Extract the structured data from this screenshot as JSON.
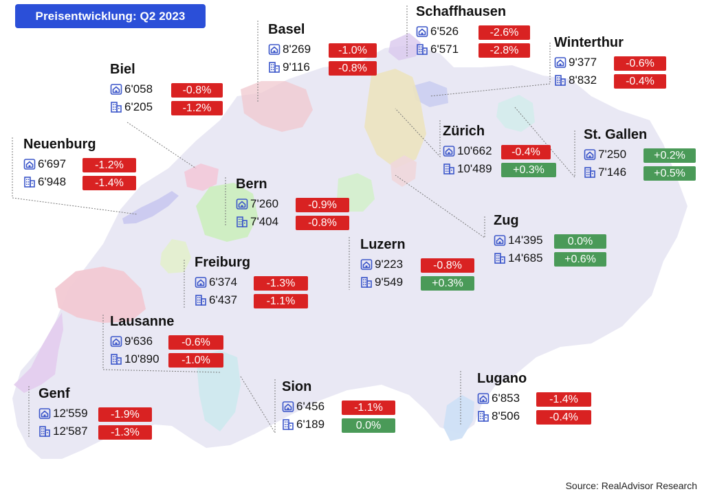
{
  "title": "Preisentwicklung: Q2 2023",
  "source": "Source: RealAdvisor Research",
  "legend_icons": {
    "house": "house-icon",
    "apartment": "apartment-building-icon"
  },
  "colors": {
    "title_bg": "#2b4fd8",
    "negative": "#d92222",
    "positive": "#4a9a58",
    "country_fill": "#e9e8f4",
    "icon": "#3a55c9"
  },
  "cities": [
    {
      "name": "Basel",
      "house_price": "8'269",
      "house_change": "-1.0%",
      "apartment_price": "9'116",
      "apartment_change": "-0.8%"
    },
    {
      "name": "Schaffhausen",
      "house_price": "6'526",
      "house_change": "-2.6%",
      "apartment_price": "6'571",
      "apartment_change": "-2.8%"
    },
    {
      "name": "Winterthur",
      "house_price": "9'377",
      "house_change": "-0.6%",
      "apartment_price": "8'832",
      "apartment_change": "-0.4%"
    },
    {
      "name": "Biel",
      "house_price": "6'058",
      "house_change": "-0.8%",
      "apartment_price": "6'205",
      "apartment_change": "-1.2%"
    },
    {
      "name": "Zürich",
      "house_price": "10'662",
      "house_change": "-0.4%",
      "apartment_price": "10'489",
      "apartment_change": "+0.3%"
    },
    {
      "name": "St. Gallen",
      "house_price": "7'250",
      "house_change": "+0.2%",
      "apartment_price": "7'146",
      "apartment_change": "+0.5%"
    },
    {
      "name": "Neuenburg",
      "house_price": "6'697",
      "house_change": "-1.2%",
      "apartment_price": "6'948",
      "apartment_change": "-1.4%"
    },
    {
      "name": "Bern",
      "house_price": "7'260",
      "house_change": "-0.9%",
      "apartment_price": "7'404",
      "apartment_change": "-0.8%"
    },
    {
      "name": "Zug",
      "house_price": "14'395",
      "house_change": "0.0%",
      "apartment_price": "14'685",
      "apartment_change": "+0.6%"
    },
    {
      "name": "Luzern",
      "house_price": "9'223",
      "house_change": "-0.8%",
      "apartment_price": "9'549",
      "apartment_change": "+0.3%"
    },
    {
      "name": "Freiburg",
      "house_price": "6'374",
      "house_change": "-1.3%",
      "apartment_price": "6'437",
      "apartment_change": "-1.1%"
    },
    {
      "name": "Lausanne",
      "house_price": "9'636",
      "house_change": "-0.6%",
      "apartment_price": "10'890",
      "apartment_change": "-1.0%"
    },
    {
      "name": "Sion",
      "house_price": "6'456",
      "house_change": "-1.1%",
      "apartment_price": "6'189",
      "apartment_change": "0.0%"
    },
    {
      "name": "Lugano",
      "house_price": "6'853",
      "house_change": "-1.4%",
      "apartment_price": "8'506",
      "apartment_change": "-0.4%"
    },
    {
      "name": "Genf",
      "house_price": "12'559",
      "house_change": "-1.9%",
      "apartment_price": "12'587",
      "apartment_change": "-1.3%"
    }
  ]
}
